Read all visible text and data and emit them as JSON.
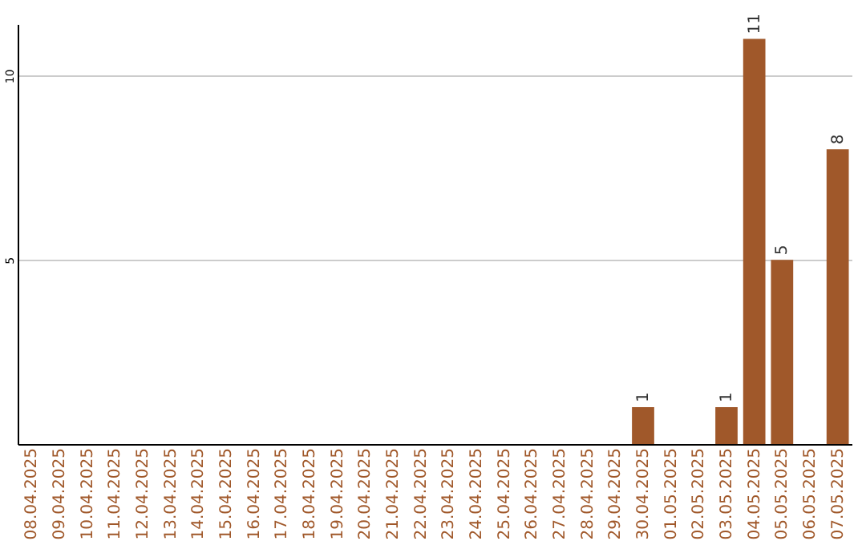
{
  "chart_data": {
    "type": "bar",
    "categories": [
      "08.04.2025",
      "09.04.2025",
      "10.04.2025",
      "11.04.2025",
      "12.04.2025",
      "13.04.2025",
      "14.04.2025",
      "15.04.2025",
      "16.04.2025",
      "17.04.2025",
      "18.04.2025",
      "19.04.2025",
      "20.04.2025",
      "21.04.2025",
      "22.04.2025",
      "23.04.2025",
      "24.04.2025",
      "25.04.2025",
      "26.04.2025",
      "27.04.2025",
      "28.04.2025",
      "29.04.2025",
      "30.04.2025",
      "01.05.2025",
      "02.05.2025",
      "03.05.2025",
      "04.05.2025",
      "05.05.2025",
      "06.05.2025",
      "07.05.2025"
    ],
    "values": [
      0,
      0,
      0,
      0,
      0,
      0,
      0,
      0,
      0,
      0,
      0,
      0,
      0,
      0,
      0,
      0,
      0,
      0,
      0,
      0,
      0,
      0,
      1,
      0,
      0,
      1,
      11,
      5,
      0,
      8
    ],
    "value_labels": [
      null,
      null,
      null,
      null,
      null,
      null,
      null,
      null,
      null,
      null,
      null,
      null,
      null,
      null,
      null,
      null,
      null,
      null,
      null,
      null,
      null,
      null,
      "1",
      null,
      null,
      "1",
      "11",
      "5",
      null,
      "8"
    ],
    "color": "#a0582a",
    "ylim": [
      0,
      11.4
    ],
    "yticks": [
      5,
      10
    ],
    "grid": "y"
  }
}
